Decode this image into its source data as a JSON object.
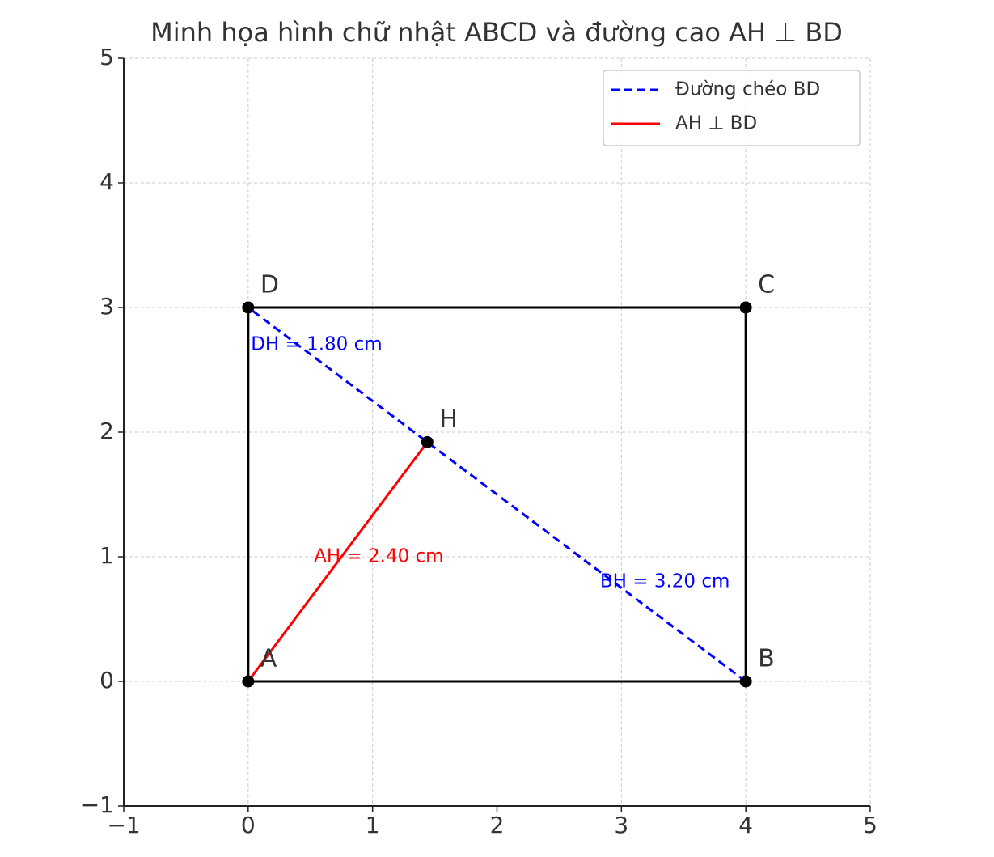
{
  "chart_data": {
    "type": "line",
    "title": "Minh họa hình chữ nhật ABCD và đường cao AH ⊥ BD",
    "xlim": [
      -1,
      5
    ],
    "ylim": [
      -1,
      5
    ],
    "xticks": [
      {
        "value": -1,
        "label": "−1"
      },
      0,
      1,
      2,
      3,
      4,
      5
    ],
    "yticks": [
      {
        "value": -1,
        "label": "−1"
      },
      0,
      1,
      2,
      3,
      4,
      5
    ],
    "grid": true,
    "legend": "upper right",
    "outline": {
      "color": "#000000",
      "x": [
        0,
        4,
        4,
        0,
        0
      ],
      "y": [
        0,
        0,
        3,
        3,
        0
      ]
    },
    "series": [
      {
        "name": "Đường chéo BD",
        "color": "#0000ff",
        "dash": true,
        "x": [
          4,
          0
        ],
        "values": [
          0,
          3
        ]
      },
      {
        "name": "AH ⊥ BD",
        "color": "#ff0000",
        "dash": false,
        "x": [
          0,
          1.44
        ],
        "values": [
          0,
          1.92
        ]
      }
    ],
    "points": [
      {
        "label": "A",
        "x": 0,
        "y": 0
      },
      {
        "label": "B",
        "x": 4,
        "y": 0
      },
      {
        "label": "C",
        "x": 4,
        "y": 3
      },
      {
        "label": "D",
        "x": 0,
        "y": 3
      },
      {
        "label": "H",
        "x": 1.44,
        "y": 1.92
      }
    ],
    "annotations": [
      {
        "text": "DH = 1.80 cm",
        "x": 0.55,
        "y": 2.7,
        "color": "#0000ff"
      },
      {
        "text": "AH = 2.40 cm",
        "x": 1.05,
        "y": 1.0,
        "color": "#ff0000"
      },
      {
        "text": "BH = 3.20 cm",
        "x": 3.35,
        "y": 0.8,
        "color": "#0000ff"
      }
    ]
  }
}
